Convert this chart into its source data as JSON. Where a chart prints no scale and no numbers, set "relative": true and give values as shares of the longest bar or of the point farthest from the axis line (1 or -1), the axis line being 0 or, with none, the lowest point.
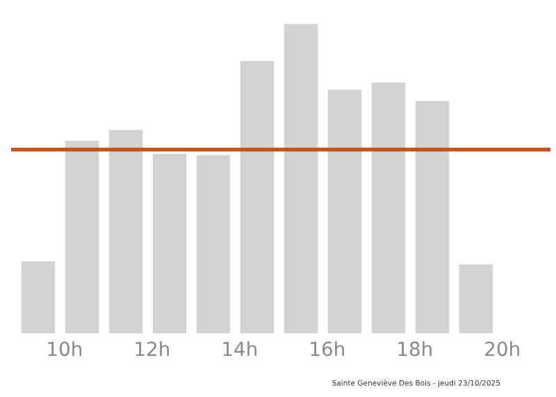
{
  "chart_data": {
    "type": "bar",
    "relative": true,
    "x": [
      9.4,
      10.4,
      11.4,
      12.4,
      13.4,
      14.4,
      15.4,
      16.4,
      17.4,
      18.4,
      19.4
    ],
    "values": [
      0.233,
      0.622,
      0.657,
      0.58,
      0.576,
      0.88,
      1,
      0.787,
      0.81,
      0.751,
      0.223
    ],
    "color": "#d3d3d3",
    "xlim": [
      8.78,
      21.1
    ],
    "xticks": [
      {
        "value": 10,
        "label": "10h"
      },
      {
        "value": 12,
        "label": "12h"
      },
      {
        "value": 14,
        "label": "14h"
      },
      {
        "value": 16,
        "label": "16h"
      },
      {
        "value": 18,
        "label": "18h"
      },
      {
        "value": 20,
        "label": "20h"
      }
    ],
    "ref_lines": [
      {
        "axis": "y",
        "value": 0.594,
        "color": "#c8501e"
      }
    ],
    "annotations": [
      "Sainte Geneviève Des Bois - jeudi 23/10/2025"
    ],
    "grid": false,
    "legend": false
  }
}
